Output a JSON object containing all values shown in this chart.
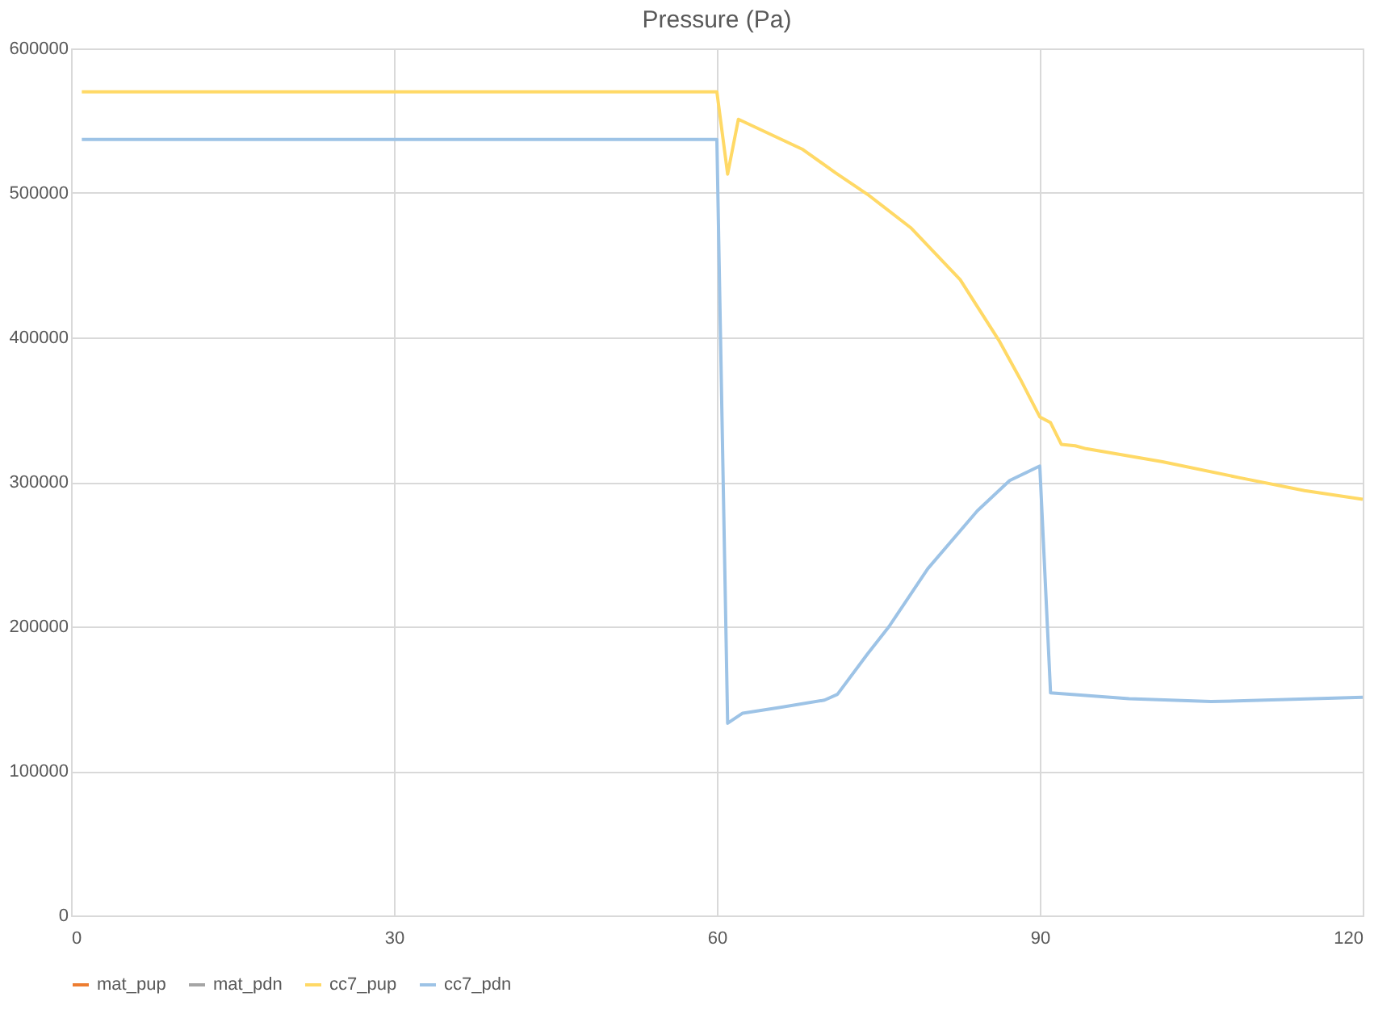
{
  "chart_data": {
    "type": "line",
    "title": "Pressure (Pa)",
    "xlim": [
      0,
      120
    ],
    "xticks": [
      0,
      30,
      60,
      90,
      120
    ],
    "ylim": [
      0,
      600000
    ],
    "yticks": [
      0,
      100000,
      200000,
      300000,
      400000,
      500000,
      600000
    ],
    "grid": true,
    "legend": "bottom",
    "line_style": "solid",
    "marker": "none",
    "series": [
      {
        "name": "mat_pup",
        "color": "#ed7d31"
      },
      {
        "name": "mat_pdn",
        "color": "#a5a5a5"
      },
      {
        "name": "cc7_pup",
        "color": "#ffd966",
        "x": [
          1,
          60,
          61,
          62,
          68,
          71,
          74,
          78,
          82.6,
          86.2,
          88.2,
          90,
          91,
          92,
          93.3,
          94.3,
          101.4,
          108.5,
          114.6,
          120
        ],
        "values": [
          570000,
          570000,
          513000,
          551000,
          530000,
          514000,
          499000,
          476000,
          440000,
          398000,
          371000,
          345000,
          341000,
          326000,
          325000,
          323000,
          314000,
          303000,
          294000,
          288000
        ]
      },
      {
        "name": "cc7_pdn",
        "color": "#9dc3e6",
        "x": [
          1,
          60,
          61,
          62.4,
          65.9,
          70,
          71.2,
          74,
          76,
          79.6,
          84.2,
          87.2,
          90,
          91,
          98.3,
          105.9,
          110.9,
          120
        ],
        "values": [
          537000,
          537000,
          133000,
          140000,
          144000,
          149000,
          153000,
          181000,
          200000,
          240000,
          280000,
          301000,
          311000,
          154000,
          150000,
          148000,
          149000,
          151000
        ]
      }
    ]
  }
}
